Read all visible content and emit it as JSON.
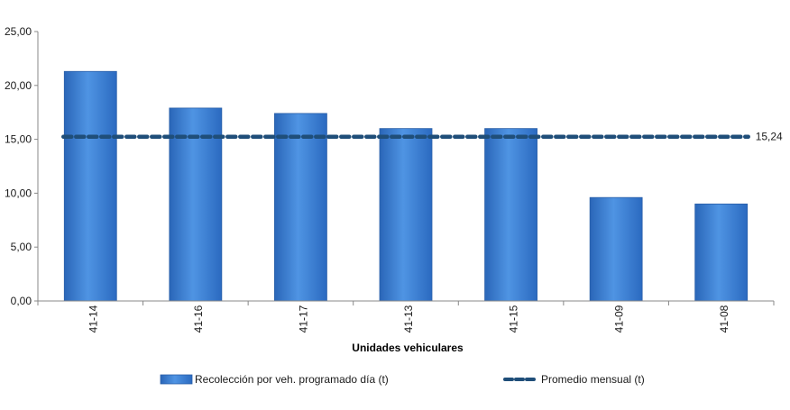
{
  "chart_data": {
    "type": "bar",
    "categories": [
      "41-14",
      "41-16",
      "41-17",
      "41-13",
      "41-15",
      "41-09",
      "41-08"
    ],
    "series": [
      {
        "name": "Recolección por veh. programado día (t)",
        "type": "bar",
        "values": [
          21.3,
          17.9,
          17.4,
          16.0,
          16.0,
          9.6,
          9.0
        ],
        "color": "#3a7fd4"
      },
      {
        "name": "Promedio mensual (t)",
        "type": "line",
        "style": "dashed",
        "values": [
          15.24,
          15.24,
          15.24,
          15.24,
          15.24,
          15.24,
          15.24
        ],
        "color": "#1f4e79"
      }
    ],
    "yticks": [
      "0,00",
      "5,00",
      "10,00",
      "15,00",
      "20,00",
      "25,00"
    ],
    "ylim": [
      0,
      25
    ],
    "xlabel": "Unidades vehiculares",
    "ylabel": "",
    "data_label": "15,24",
    "grid": false,
    "legend_position": "bottom"
  }
}
